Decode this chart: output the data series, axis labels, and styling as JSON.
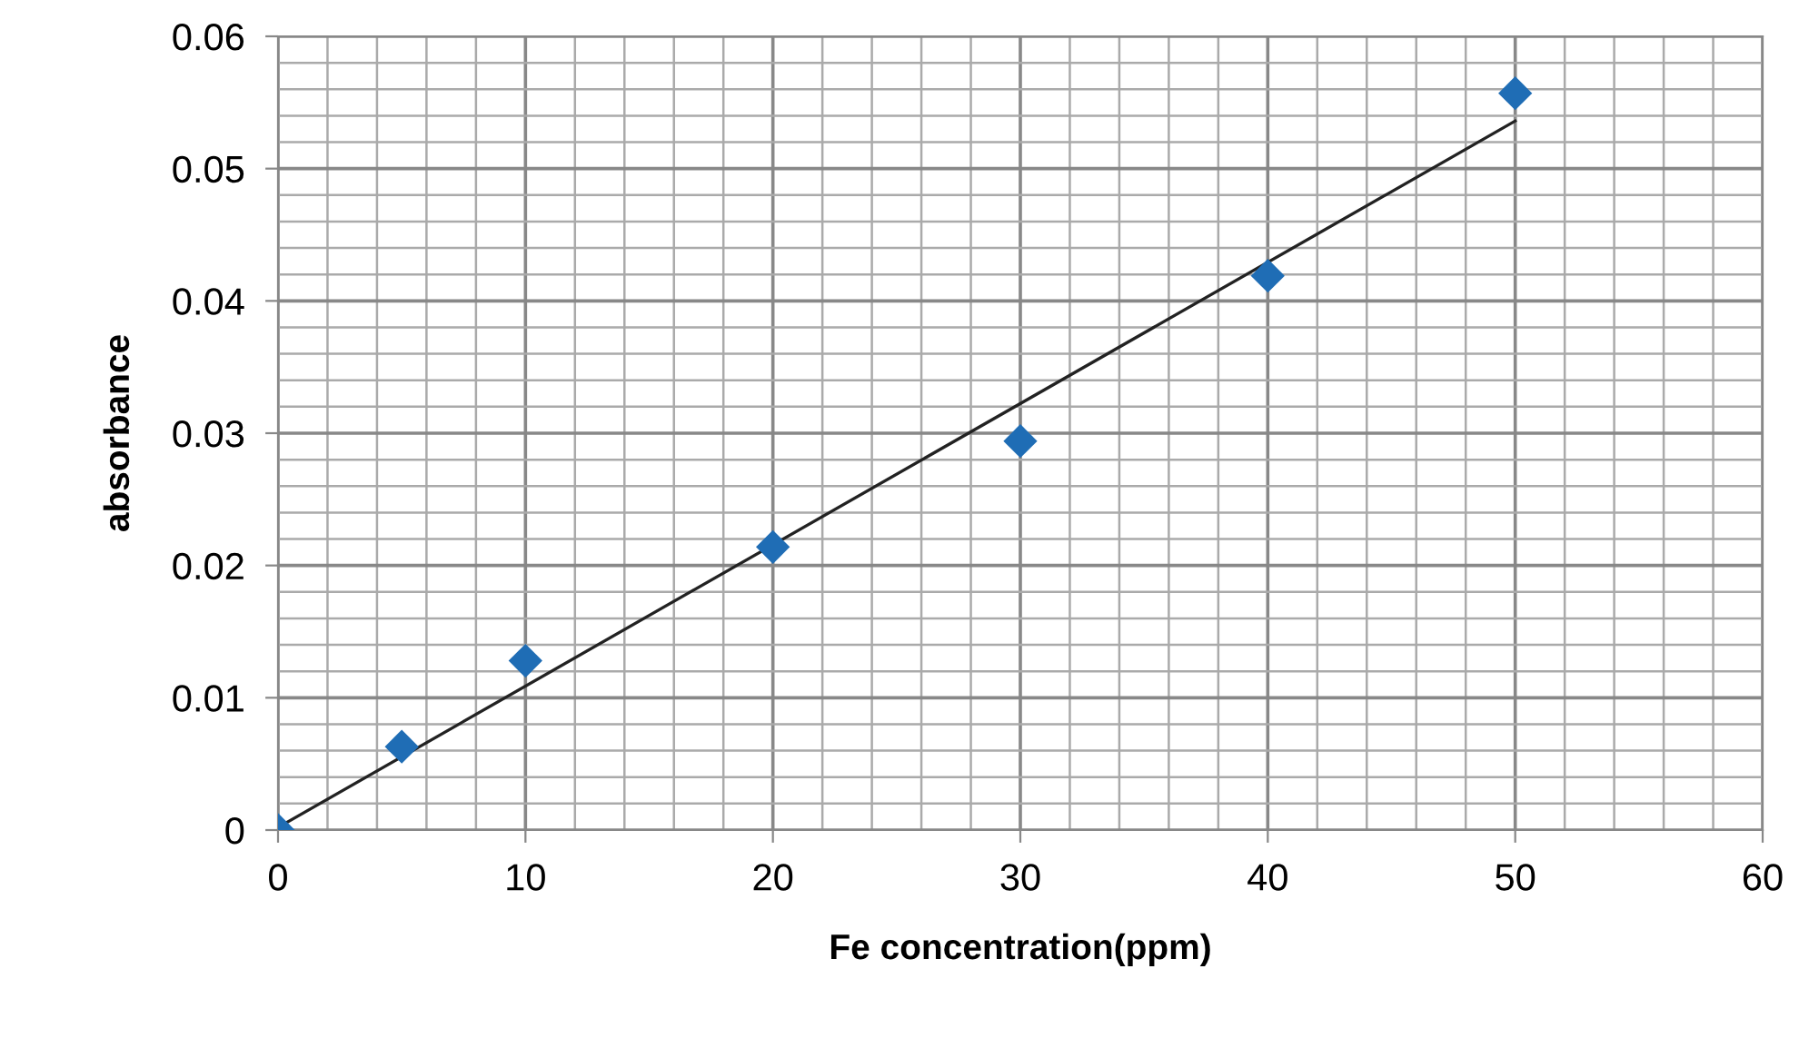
{
  "chart_data": {
    "type": "scatter",
    "xlabel": "Fe concentration(ppm)",
    "ylabel": "absorbance",
    "series": [
      {
        "color": "#1f6db5",
        "marker": "diamond",
        "x": [
          0,
          5,
          10,
          20,
          30,
          40,
          50
        ],
        "values": [
          0,
          0.0063,
          0.0128,
          0.0214,
          0.0294,
          0.0419,
          0.0557
        ]
      },
      {
        "type": "line",
        "color": "#222222",
        "marker": "none",
        "line_style": "solid",
        "x": [
          0,
          50
        ],
        "values": [
          0.0002,
          0.0536
        ]
      }
    ],
    "xlim": [
      0,
      60
    ],
    "xticks": [
      0,
      10,
      20,
      30,
      40,
      50,
      60
    ],
    "ylim": [
      0,
      0.06
    ],
    "yticks": [
      0,
      {
        "value": 0.01,
        "label": "0.01"
      },
      {
        "value": 0.02,
        "label": "0.02"
      },
      {
        "value": 0.03,
        "label": "0.03"
      },
      {
        "value": 0.04,
        "label": "0.04"
      },
      {
        "value": 0.05,
        "label": "0.05"
      },
      {
        "value": 0.06,
        "label": "0.06"
      }
    ],
    "grid": true,
    "legend": false
  }
}
